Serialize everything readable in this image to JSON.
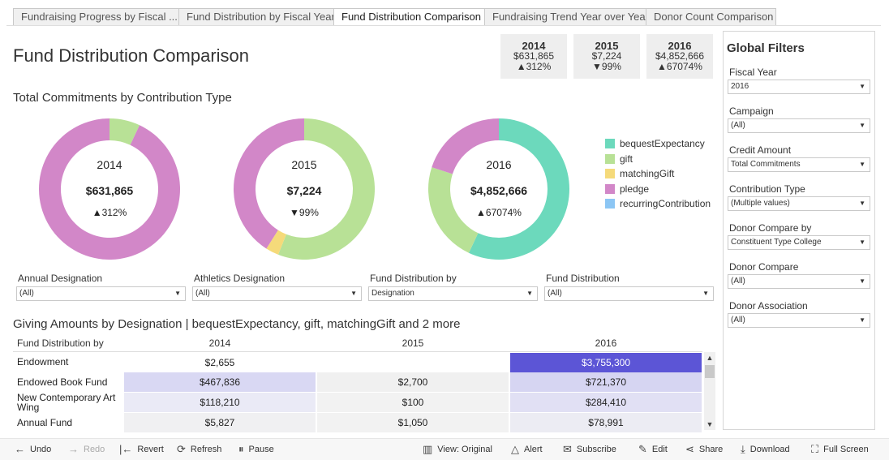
{
  "tabs": [
    {
      "label": "Fundraising Progress by Fiscal ..."
    },
    {
      "label": "Fund Distribution by Fiscal Year"
    },
    {
      "label": "Fund Distribution Comparison"
    },
    {
      "label": "Fundraising Trend Year over Year"
    },
    {
      "label": "Donor Count Comparison"
    }
  ],
  "title": "Fund Distribution Comparison",
  "kpis": [
    {
      "year": "2014",
      "amount": "$631,865",
      "change": "▲312%"
    },
    {
      "year": "2015",
      "amount": "$7,224",
      "change": "▼99%"
    },
    {
      "year": "2016",
      "amount": "$4,852,666",
      "change": "▲67074%"
    }
  ],
  "commitments_title": "Total Commitments by Contribution Type",
  "colors": {
    "bequestExpectancy": "#6cd9bc",
    "gift": "#b8e196",
    "matchingGift": "#f5da7a",
    "pledge": "#d287c8",
    "recurringContribution": "#8cc6f4",
    "highlight_cell": "#5c55d6"
  },
  "donuts": [
    {
      "year": "2014",
      "amount": "$631,865",
      "change": "▲312%"
    },
    {
      "year": "2015",
      "amount": "$7,224",
      "change": "▼99%"
    },
    {
      "year": "2016",
      "amount": "$4,852,666",
      "change": "▲67074%"
    }
  ],
  "chart_data": {
    "type": "pie",
    "categories": [
      "bequestExpectancy",
      "gift",
      "matchingGift",
      "pledge",
      "recurringContribution"
    ],
    "series": [
      {
        "name": "2014",
        "values": [
          0,
          7,
          0,
          93,
          0
        ]
      },
      {
        "name": "2015",
        "values": [
          0,
          56,
          3,
          41,
          0
        ]
      },
      {
        "name": "2016",
        "values": [
          57,
          23,
          0,
          20,
          0
        ]
      }
    ]
  },
  "legend": [
    {
      "label": "bequestExpectancy",
      "key": "bequestExpectancy"
    },
    {
      "label": "gift",
      "key": "gift"
    },
    {
      "label": "matchingGift",
      "key": "matchingGift"
    },
    {
      "label": "pledge",
      "key": "pledge"
    },
    {
      "label": "recurringContribution",
      "key": "recurringContribution"
    }
  ],
  "local_filters": [
    {
      "label": "Annual Designation",
      "value": "(All)"
    },
    {
      "label": "Athletics Designation",
      "value": "(All)"
    },
    {
      "label": "Fund Distribution by",
      "value": "Designation"
    },
    {
      "label": "Fund Distribution",
      "value": "(All)"
    }
  ],
  "giving_title": "Giving Amounts by Designation | bequestExpectancy, gift, matchingGift and 2 more",
  "table": {
    "row_header": "Fund Distribution by",
    "columns": [
      "2014",
      "2015",
      "2016"
    ],
    "rows": [
      {
        "label": "Endowment",
        "values": [
          "$2,655",
          "",
          "$3,755,300"
        ]
      },
      {
        "label": "Endowed Book Fund",
        "values": [
          "$467,836",
          "$2,700",
          "$721,370"
        ]
      },
      {
        "label": "New Contemporary Art Wing",
        "values": [
          "$118,210",
          "$100",
          "$284,410"
        ]
      },
      {
        "label": "Annual Fund",
        "values": [
          "$5,827",
          "$1,050",
          "$78,991"
        ]
      }
    ]
  },
  "global_filters": {
    "title": "Global Filters",
    "items": [
      {
        "label": "Fiscal Year",
        "value": "2016"
      },
      {
        "label": "Campaign",
        "value": "(All)"
      },
      {
        "label": "Credit Amount",
        "value": "Total Commitments"
      },
      {
        "label": "Contribution Type",
        "value": "(Multiple values)"
      },
      {
        "label": "Donor Compare by",
        "value": "Constituent Type College"
      },
      {
        "label": "Donor Compare",
        "value": "(All)"
      },
      {
        "label": "Donor Association",
        "value": "(All)"
      }
    ]
  },
  "toolbar": {
    "undo": "Undo",
    "redo": "Redo",
    "revert": "Revert",
    "refresh": "Refresh",
    "pause": "Pause",
    "view": "View: Original",
    "alert": "Alert",
    "subscribe": "Subscribe",
    "edit": "Edit",
    "share": "Share",
    "download": "Download",
    "fullscreen": "Full Screen"
  }
}
